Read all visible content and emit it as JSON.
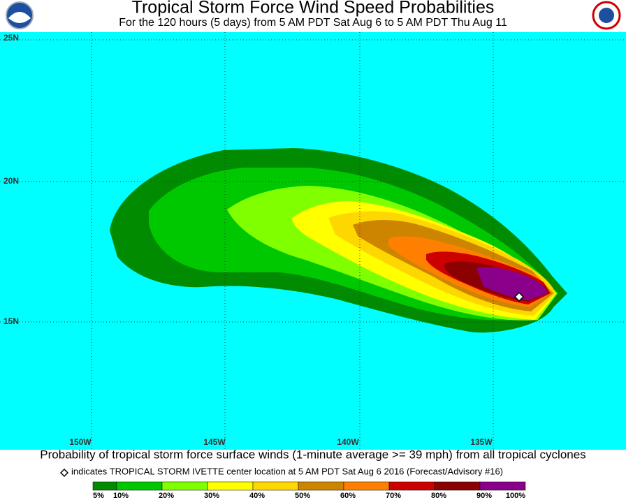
{
  "header": {
    "title": "Tropical Storm Force Wind Speed Probabilities",
    "subtitle": "For the 120 hours (5 days) from 5 AM PDT Sat Aug 6 to 5 AM PDT Thu Aug 11"
  },
  "map": {
    "lat_labels": [
      "25N",
      "20N",
      "15N"
    ],
    "lon_labels": [
      "150W",
      "145W",
      "140W",
      "135W"
    ]
  },
  "footer": {
    "caption": "Probability of tropical storm force surface winds (1-minute average >= 39 mph) from all tropical cyclones",
    "note": "indicates TROPICAL STORM IVETTE center location at 5 AM PDT Sat Aug 6 2016 (Forecast/Advisory #16)"
  },
  "legend": {
    "colors": [
      "#008b00",
      "#00c800",
      "#80ff00",
      "#ffff00",
      "#ffd700",
      "#cd8500",
      "#ff8000",
      "#cd0000",
      "#8b0000",
      "#8b008b"
    ],
    "labels": [
      "5%",
      "10%",
      "20%",
      "30%",
      "40%",
      "50%",
      "60%",
      "70%",
      "80%",
      "90%",
      "100%"
    ]
  }
}
